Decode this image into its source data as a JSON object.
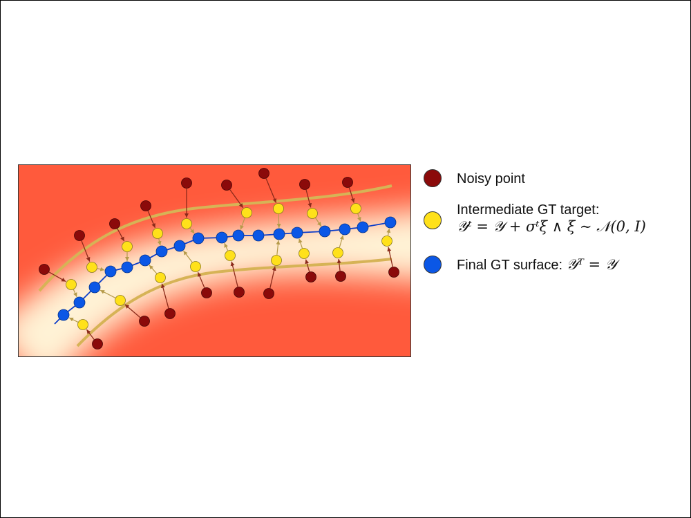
{
  "legend": {
    "noisy": {
      "label": "Noisy point",
      "color": "#8b0a0a"
    },
    "intermediate": {
      "label": "Intermediate GT target:",
      "formula": "𝒴ᵗ = 𝒴 + σᵗξ ∧ ξ ∼ 𝒩(0, I)",
      "color": "#ffe11a"
    },
    "final": {
      "label_prefix": "Final GT surface:",
      "formula": "𝒴ᵀ = 𝒴",
      "color": "#0b57e6"
    }
  },
  "colors": {
    "background_hot": "#ff5a3c",
    "background_band": "#fff3d6",
    "band_curve": "#d6b356",
    "surface_line": "#0b3cc9",
    "noisy_arrow": "#8b2a1a",
    "target_arrow": "#b59a4a"
  },
  "icons": {
    "noisy": "dark-red-circle",
    "intermediate": "yellow-circle",
    "final": "blue-circle"
  }
}
